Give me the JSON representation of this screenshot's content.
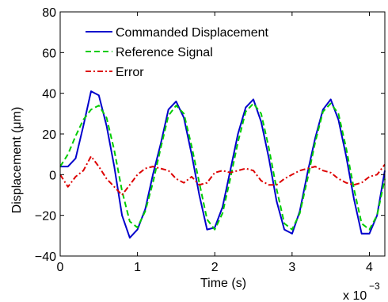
{
  "chart_data": {
    "type": "line",
    "xlabel": "Time (s)",
    "ylabel": "Displacement (μm)",
    "x_multiplier_base": "x 10",
    "x_multiplier_exp": "−3",
    "xlim": [
      0,
      4.2
    ],
    "ylim": [
      -40,
      80
    ],
    "xticks": [
      0,
      1,
      2,
      3,
      4
    ],
    "xtick_labels": [
      "0",
      "1",
      "2",
      "3",
      "4"
    ],
    "yticks": [
      -40,
      -20,
      0,
      20,
      40,
      60,
      80
    ],
    "ytick_labels": [
      "−40",
      "−20",
      "0",
      "20",
      "40",
      "60",
      "80"
    ],
    "grid": false,
    "legend_position": "top-left",
    "series": [
      {
        "name": "Commanded Displacement",
        "color": "#0000cc",
        "style": "solid",
        "x": [
          0,
          0.1,
          0.2,
          0.3,
          0.4,
          0.5,
          0.6,
          0.7,
          0.8,
          0.9,
          1.0,
          1.1,
          1.2,
          1.3,
          1.4,
          1.5,
          1.6,
          1.7,
          1.8,
          1.9,
          2.0,
          2.1,
          2.2,
          2.3,
          2.4,
          2.5,
          2.6,
          2.7,
          2.8,
          2.9,
          3.0,
          3.1,
          3.2,
          3.3,
          3.4,
          3.5,
          3.6,
          3.7,
          3.8,
          3.9,
          4.0,
          4.1,
          4.2
        ],
        "y": [
          4,
          4,
          8,
          24,
          41,
          39,
          24,
          4,
          -20,
          -31,
          -27,
          -17,
          0,
          15,
          32,
          36,
          28,
          10,
          -10,
          -27,
          -26,
          -16,
          2,
          20,
          33,
          37,
          26,
          8,
          -13,
          -27,
          -29,
          -18,
          1,
          18,
          32,
          37,
          27,
          9,
          -12,
          -29,
          -29,
          -20,
          2
        ],
        "legend_label": "Commanded Displacement"
      },
      {
        "name": "Reference Signal",
        "color": "#00cc00",
        "style": "dashed",
        "x": [
          0,
          0.1,
          0.2,
          0.3,
          0.4,
          0.5,
          0.6,
          0.7,
          0.8,
          0.9,
          1.0,
          1.1,
          1.2,
          1.3,
          1.4,
          1.5,
          1.6,
          1.7,
          1.8,
          1.9,
          2.0,
          2.1,
          2.2,
          2.3,
          2.4,
          2.5,
          2.6,
          2.7,
          2.8,
          2.9,
          3.0,
          3.1,
          3.2,
          3.3,
          3.4,
          3.5,
          3.6,
          3.7,
          3.8,
          3.9,
          4.0,
          4.1,
          4.2
        ],
        "y": [
          4,
          10,
          19,
          27,
          32,
          34,
          28,
          12,
          -8,
          -23,
          -26,
          -18,
          -4,
          13,
          29,
          34,
          30,
          14,
          -4,
          -22,
          -27,
          -19,
          -2,
          16,
          31,
          35,
          30,
          13,
          -7,
          -24,
          -27,
          -19,
          -2,
          16,
          31,
          35,
          30,
          13,
          -7,
          -24,
          -27,
          -20,
          -2
        ],
        "legend_label": "Reference Signal"
      },
      {
        "name": "Error",
        "color": "#dd0000",
        "style": "dashdot",
        "x": [
          0,
          0.1,
          0.2,
          0.3,
          0.4,
          0.5,
          0.6,
          0.7,
          0.8,
          0.9,
          1.0,
          1.1,
          1.2,
          1.3,
          1.4,
          1.5,
          1.6,
          1.7,
          1.8,
          1.9,
          2.0,
          2.1,
          2.2,
          2.3,
          2.4,
          2.5,
          2.6,
          2.7,
          2.8,
          2.9,
          3.0,
          3.1,
          3.2,
          3.3,
          3.4,
          3.5,
          3.6,
          3.7,
          3.8,
          3.9,
          4.0,
          4.1,
          4.2
        ],
        "y": [
          0,
          -6,
          -1,
          2,
          9,
          4,
          -2,
          -6,
          -10,
          -5,
          0,
          3,
          4,
          3,
          2,
          -2,
          -4,
          -1,
          -5,
          -4,
          1,
          2,
          1,
          2,
          3,
          2,
          -3,
          -5,
          -5,
          -2,
          0,
          2,
          3,
          4,
          2,
          1,
          -2,
          -4,
          -5,
          -4,
          -1,
          0,
          5
        ],
        "legend_label": "Error"
      }
    ]
  }
}
